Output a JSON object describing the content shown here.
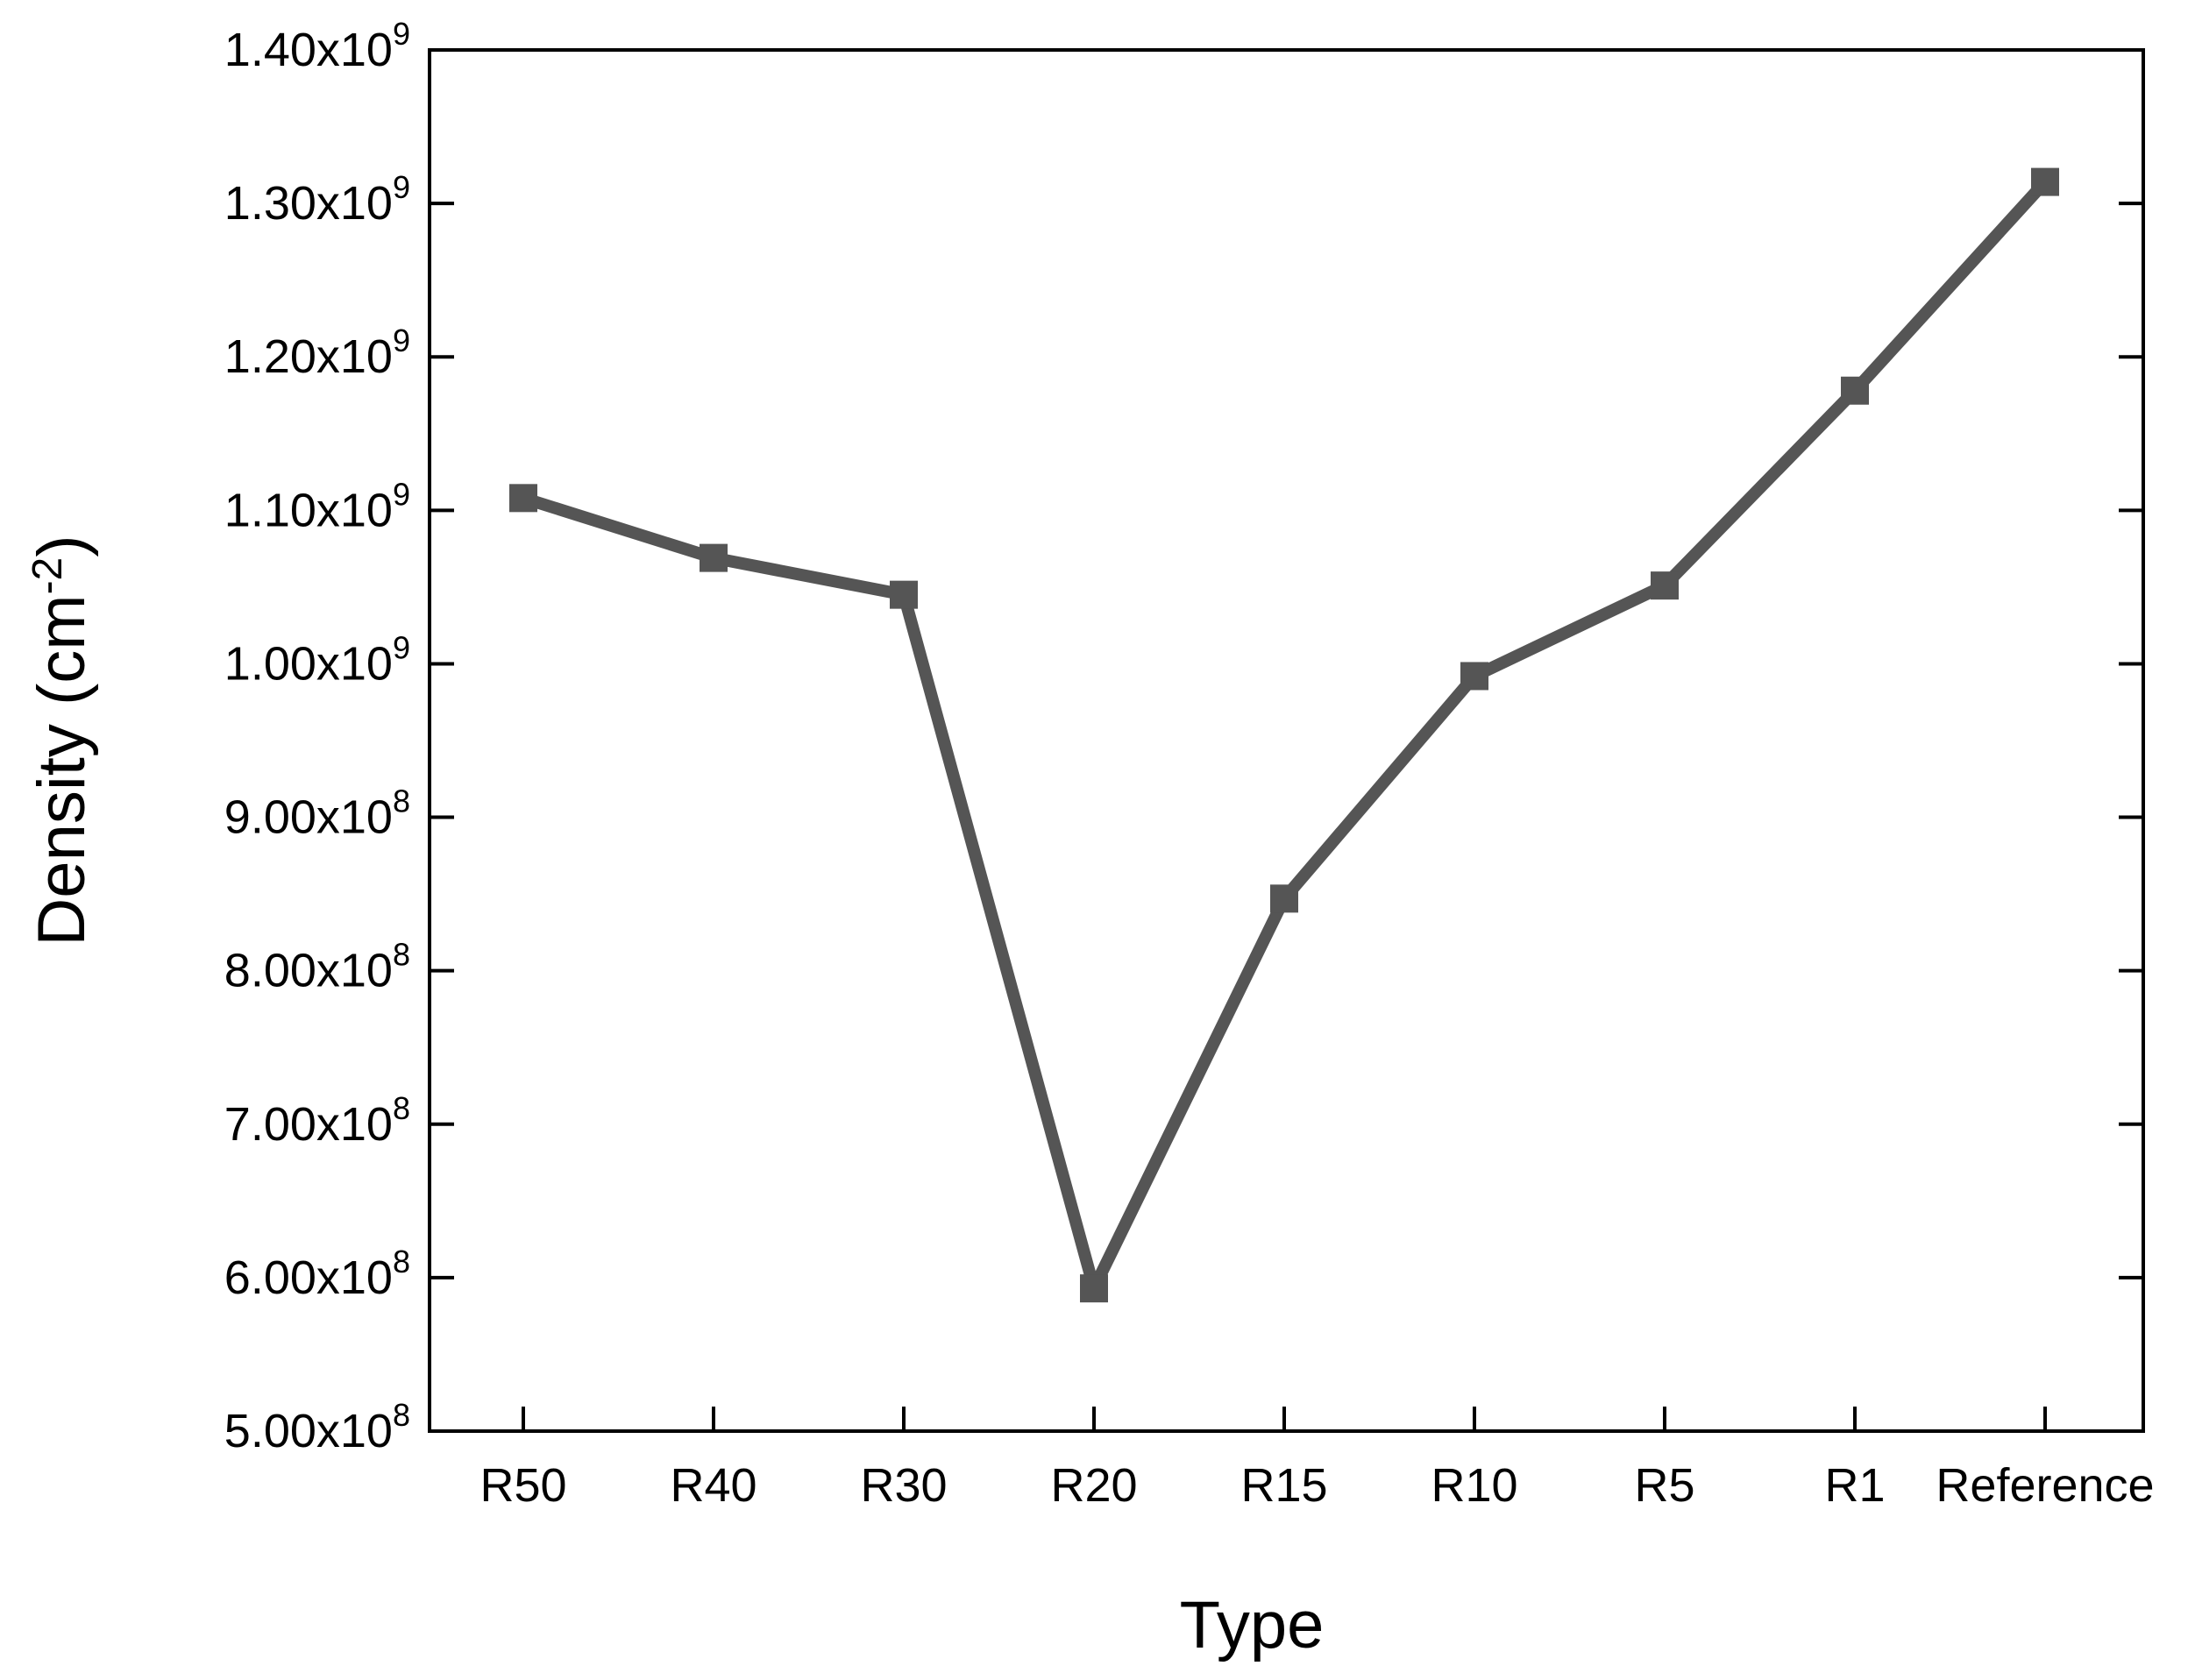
{
  "chart_data": {
    "type": "line",
    "categories": [
      "R50",
      "R40",
      "R30",
      "R20",
      "R15",
      "R10",
      "R5",
      "R1",
      "Reference"
    ],
    "series": [
      {
        "values": [
          1108000000.0,
          1069000000.0,
          1045000000.0,
          593000000.0,
          847000000.0,
          992000000.0,
          1051000000.0,
          1178000000.0,
          1314000000.0
        ]
      }
    ],
    "title": "",
    "xlabel": "Type",
    "ylabel": {
      "base": "Density (cm",
      "sup": "-2",
      "tail": ")"
    },
    "ylim": [
      500000000.0,
      1400000000.0
    ],
    "yticks": [
      {
        "value": 500000000.0,
        "mantissa": "5.00x10",
        "exp": "8"
      },
      {
        "value": 600000000.0,
        "mantissa": "6.00x10",
        "exp": "8"
      },
      {
        "value": 700000000.0,
        "mantissa": "7.00x10",
        "exp": "8"
      },
      {
        "value": 800000000.0,
        "mantissa": "8.00x10",
        "exp": "8"
      },
      {
        "value": 900000000.0,
        "mantissa": "9.00x10",
        "exp": "8"
      },
      {
        "value": 1000000000.0,
        "mantissa": "1.00x10",
        "exp": "9"
      },
      {
        "value": 1100000000.0,
        "mantissa": "1.10x10",
        "exp": "9"
      },
      {
        "value": 1200000000.0,
        "mantissa": "1.20x10",
        "exp": "9"
      },
      {
        "value": 1300000000.0,
        "mantissa": "1.30x10",
        "exp": "9"
      },
      {
        "value": 1400000000.0,
        "mantissa": "1.40x10",
        "exp": "9"
      }
    ],
    "grid": false,
    "legend": "none",
    "marker": "square",
    "colors": {
      "series": "#555555",
      "axis": "#000000"
    }
  }
}
